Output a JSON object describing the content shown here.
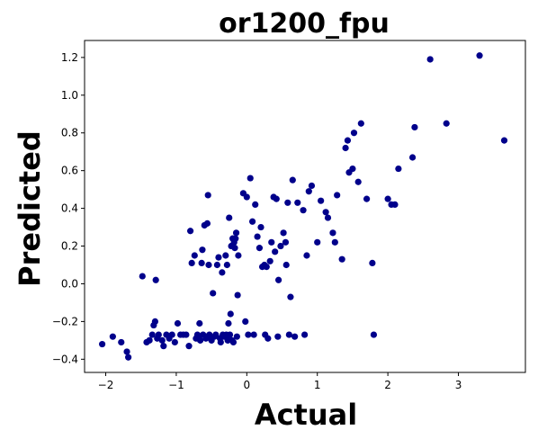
{
  "chart_data": {
    "type": "scatter",
    "title": "or1200_fpu",
    "xlabel": "Actual",
    "ylabel": "Predicted",
    "xlim": [
      -2.3,
      3.95
    ],
    "ylim": [
      -0.47,
      1.29
    ],
    "xticks": [
      -2,
      -1,
      0,
      1,
      2,
      3
    ],
    "yticks": [
      -0.4,
      -0.2,
      0.0,
      0.2,
      0.4,
      0.6,
      0.8,
      1.0,
      1.2
    ],
    "xtick_labels": [
      "−2",
      "−1",
      "0",
      "1",
      "2",
      "3"
    ],
    "ytick_labels": [
      "−0.4",
      "−0.2",
      "0.0",
      "0.2",
      "0.4",
      "0.6",
      "0.8",
      "1.0",
      "1.2"
    ],
    "grid": false,
    "marker_color": "#00008b",
    "series": [
      {
        "points": [
          [
            -2.05,
            -0.32
          ],
          [
            -1.9,
            -0.28
          ],
          [
            -1.78,
            -0.31
          ],
          [
            -1.7,
            -0.36
          ],
          [
            -1.68,
            -0.39
          ],
          [
            -1.48,
            0.04
          ],
          [
            -1.42,
            -0.31
          ],
          [
            -1.38,
            -0.3
          ],
          [
            -1.34,
            -0.27
          ],
          [
            -1.32,
            -0.22
          ],
          [
            -1.3,
            -0.2
          ],
          [
            -1.29,
            0.02
          ],
          [
            -1.27,
            -0.29
          ],
          [
            -1.25,
            -0.27
          ],
          [
            -1.2,
            -0.3
          ],
          [
            -1.18,
            -0.33
          ],
          [
            -1.14,
            -0.27
          ],
          [
            -1.1,
            -0.29
          ],
          [
            -1.06,
            -0.27
          ],
          [
            -1.02,
            -0.31
          ],
          [
            -0.98,
            -0.21
          ],
          [
            -0.94,
            -0.27
          ],
          [
            -0.9,
            -0.27
          ],
          [
            -0.86,
            -0.27
          ],
          [
            -0.82,
            -0.33
          ],
          [
            -0.8,
            0.28
          ],
          [
            -0.78,
            0.11
          ],
          [
            -0.74,
            0.15
          ],
          [
            -0.72,
            -0.29
          ],
          [
            -0.7,
            -0.27
          ],
          [
            -0.68,
            -0.28
          ],
          [
            -0.67,
            -0.21
          ],
          [
            -0.66,
            -0.3
          ],
          [
            -0.64,
            0.11
          ],
          [
            -0.63,
            0.18
          ],
          [
            -0.62,
            -0.27
          ],
          [
            -0.6,
            0.31
          ],
          [
            -0.58,
            -0.29
          ],
          [
            -0.57,
            -0.28
          ],
          [
            -0.56,
            0.32
          ],
          [
            -0.55,
            0.47
          ],
          [
            -0.54,
            0.1
          ],
          [
            -0.53,
            -0.27
          ],
          [
            -0.52,
            -0.28
          ],
          [
            -0.5,
            -0.3
          ],
          [
            -0.48,
            -0.05
          ],
          [
            -0.46,
            -0.28
          ],
          [
            -0.44,
            -0.27
          ],
          [
            -0.42,
            0.1
          ],
          [
            -0.4,
            0.14
          ],
          [
            -0.38,
            -0.29
          ],
          [
            -0.37,
            -0.31
          ],
          [
            -0.35,
            0.06
          ],
          [
            -0.34,
            -0.27
          ],
          [
            -0.32,
            -0.28
          ],
          [
            -0.3,
            0.15
          ],
          [
            -0.29,
            -0.27
          ],
          [
            -0.28,
            0.1
          ],
          [
            -0.27,
            -0.3
          ],
          [
            -0.26,
            -0.21
          ],
          [
            -0.25,
            0.35
          ],
          [
            -0.24,
            -0.27
          ],
          [
            -0.23,
            -0.16
          ],
          [
            -0.22,
            0.2
          ],
          [
            -0.21,
            -0.3
          ],
          [
            -0.2,
            0.24
          ],
          [
            -0.19,
            -0.31
          ],
          [
            -0.18,
            0.22
          ],
          [
            -0.17,
            0.19
          ],
          [
            -0.16,
            0.24
          ],
          [
            -0.15,
            0.27
          ],
          [
            -0.14,
            -0.28
          ],
          [
            -0.13,
            -0.06
          ],
          [
            -0.12,
            0.15
          ],
          [
            -0.05,
            0.48
          ],
          [
            -0.02,
            -0.2
          ],
          [
            0.0,
            0.46
          ],
          [
            0.02,
            -0.27
          ],
          [
            0.05,
            0.56
          ],
          [
            0.08,
            0.33
          ],
          [
            0.1,
            -0.27
          ],
          [
            0.12,
            0.42
          ],
          [
            0.15,
            0.25
          ],
          [
            0.18,
            0.19
          ],
          [
            0.2,
            0.3
          ],
          [
            0.22,
            0.09
          ],
          [
            0.25,
            0.1
          ],
          [
            0.26,
            -0.27
          ],
          [
            0.28,
            0.09
          ],
          [
            0.3,
            -0.29
          ],
          [
            0.33,
            0.12
          ],
          [
            0.35,
            0.22
          ],
          [
            0.38,
            0.46
          ],
          [
            0.4,
            0.17
          ],
          [
            0.42,
            0.45
          ],
          [
            0.44,
            -0.28
          ],
          [
            0.45,
            0.02
          ],
          [
            0.48,
            0.2
          ],
          [
            0.52,
            0.27
          ],
          [
            0.55,
            0.22
          ],
          [
            0.56,
            0.1
          ],
          [
            0.58,
            0.43
          ],
          [
            0.6,
            -0.27
          ],
          [
            0.62,
            -0.07
          ],
          [
            0.65,
            0.55
          ],
          [
            0.68,
            -0.28
          ],
          [
            0.72,
            0.43
          ],
          [
            0.8,
            0.39
          ],
          [
            0.82,
            -0.27
          ],
          [
            0.85,
            0.15
          ],
          [
            0.88,
            0.49
          ],
          [
            0.92,
            0.52
          ],
          [
            1.0,
            0.22
          ],
          [
            1.05,
            0.44
          ],
          [
            1.12,
            0.38
          ],
          [
            1.15,
            0.35
          ],
          [
            1.22,
            0.27
          ],
          [
            1.25,
            0.22
          ],
          [
            1.28,
            0.47
          ],
          [
            1.35,
            0.13
          ],
          [
            1.4,
            0.72
          ],
          [
            1.43,
            0.76
          ],
          [
            1.45,
            0.59
          ],
          [
            1.5,
            0.61
          ],
          [
            1.52,
            0.8
          ],
          [
            1.58,
            0.54
          ],
          [
            1.62,
            0.85
          ],
          [
            1.7,
            0.45
          ],
          [
            1.78,
            0.11
          ],
          [
            1.8,
            -0.27
          ],
          [
            2.0,
            0.45
          ],
          [
            2.05,
            0.42
          ],
          [
            2.1,
            0.42
          ],
          [
            2.15,
            0.61
          ],
          [
            2.35,
            0.67
          ],
          [
            2.38,
            0.83
          ],
          [
            2.6,
            1.19
          ],
          [
            2.83,
            0.85
          ],
          [
            3.3,
            1.21
          ],
          [
            3.65,
            0.76
          ]
        ]
      }
    ]
  }
}
